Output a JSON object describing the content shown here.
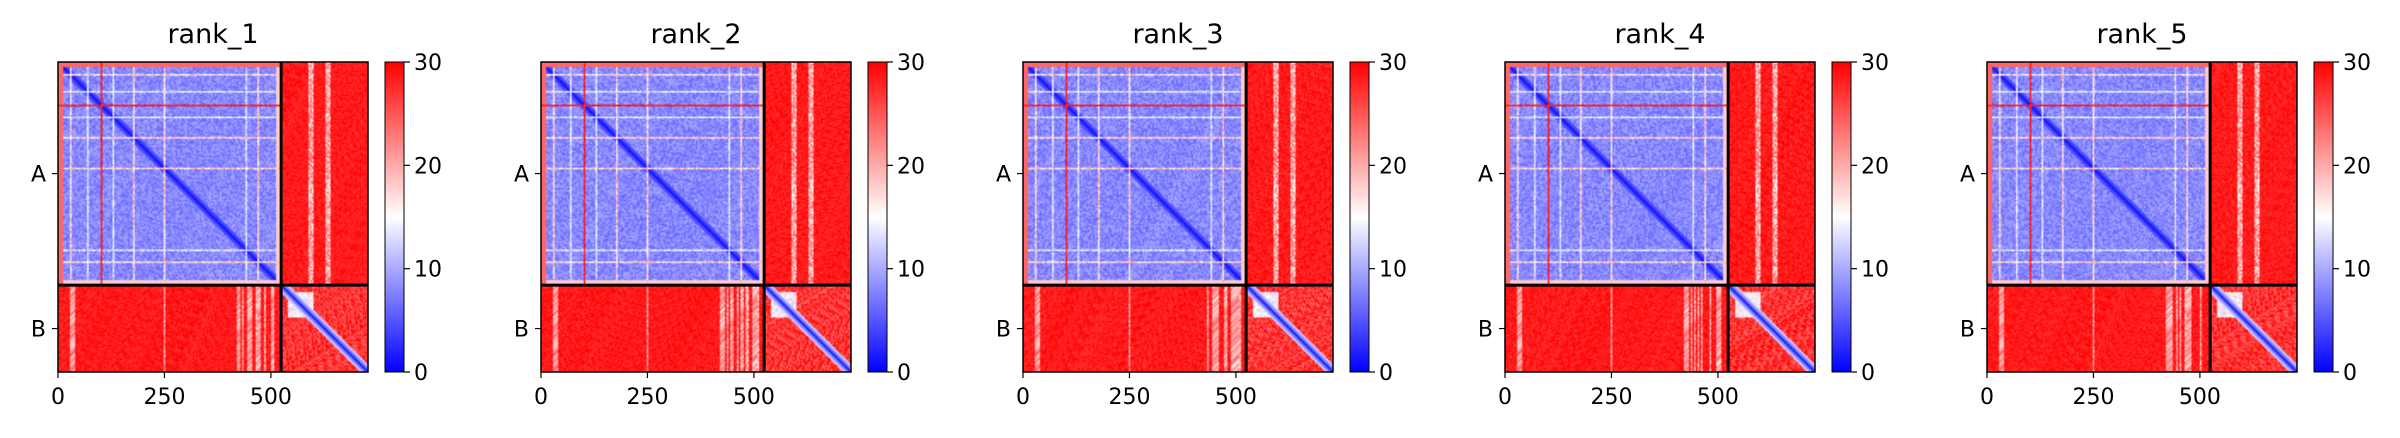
{
  "colors": {
    "low": "#0000ff",
    "mid": "#ffffff",
    "high": "#ff0000",
    "frame": "#000000"
  },
  "chart_data": {
    "type": "heatmap",
    "description_free": true,
    "colormap": "bwr",
    "vmin": 0,
    "vmax": 30,
    "colorbar_ticks": [
      0,
      10,
      20,
      30
    ],
    "x_ticks": [
      0,
      250,
      500
    ],
    "xlim": [
      0,
      728
    ],
    "chains": [
      {
        "label": "A",
        "start": 0,
        "end": 524
      },
      {
        "label": "B",
        "start": 524,
        "end": 728
      }
    ],
    "panels": [
      {
        "title": "rank_1"
      },
      {
        "title": "rank_2"
      },
      {
        "title": "rank_3"
      },
      {
        "title": "rank_4"
      },
      {
        "title": "rank_5"
      }
    ]
  }
}
